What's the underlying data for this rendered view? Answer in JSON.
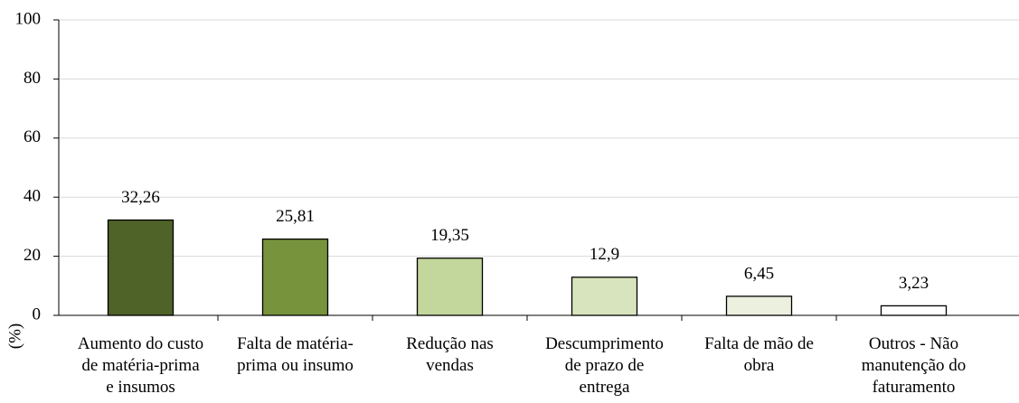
{
  "chart_data": {
    "type": "bar",
    "y_label": "(%)",
    "categories": [
      "Aumento do custo\nde matéria-prima\ne insumos",
      "Falta de matéria-\nprima ou insumo",
      "Redução nas\nvendas",
      "Descumprimento\nde prazo de\nentrega",
      "Falta de mão de\nobra",
      "Outros - Não\nmanutenção do\nfaturamento"
    ],
    "values": [
      32.26,
      25.81,
      19.35,
      12.9,
      6.45,
      3.23
    ],
    "value_labels": [
      "32,26",
      "25,81",
      "19,35",
      "12,9",
      "6,45",
      "3,23"
    ],
    "colors": [
      "#4f6228",
      "#77933c",
      "#c3d69b",
      "#d7e4bd",
      "#ebf1de",
      "#ffffff"
    ],
    "ylim": [
      0,
      100
    ],
    "yticks": [
      0,
      20,
      40,
      60,
      80,
      100
    ],
    "grid": true
  }
}
